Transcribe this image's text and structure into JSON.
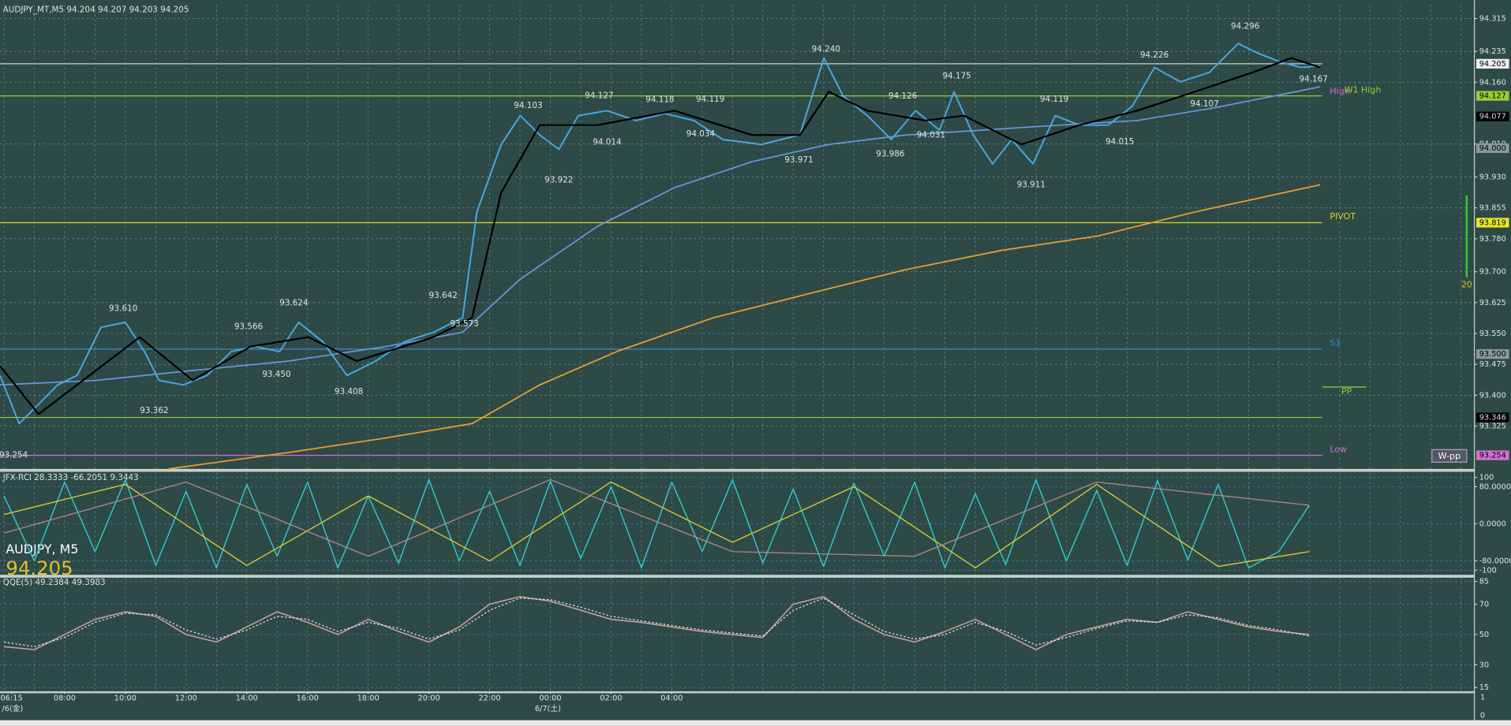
{
  "chart_data": [
    {
      "type": "line",
      "title": "AUDJPY_MT,M5  94.204 94.207 94.203 94.205",
      "xlim": [
        5.87,
        54.44
      ],
      "xticks": [
        {
          "value": 6.25,
          "label": "06:15"
        },
        {
          "value": 8,
          "label": "08:00"
        },
        {
          "value": 10,
          "label": "10:00"
        },
        {
          "value": 12,
          "label": "12:00"
        },
        {
          "value": 14,
          "label": "14:00"
        },
        {
          "value": 16,
          "label": "16:00"
        },
        {
          "value": 18,
          "label": "18:00"
        },
        {
          "value": 20,
          "label": "20:00"
        },
        {
          "value": 22,
          "label": "22:00"
        },
        {
          "value": 24,
          "label": "00:00"
        },
        {
          "value": 26,
          "label": "02:00"
        },
        {
          "value": 28,
          "label": "04:00"
        }
      ],
      "ylim": [
        93.221,
        94.348
      ],
      "yticks": [
        94.315,
        94.235,
        {
          "value": 94.16,
          "label": "94.160"
        },
        {
          "value": 94.01,
          "label": "94.010"
        },
        {
          "value": 93.93,
          "label": "93.930"
        },
        93.855,
        {
          "value": 93.78,
          "label": "93.780"
        },
        {
          "value": 93.7,
          "label": "93.700"
        },
        93.625,
        {
          "value": 93.55,
          "label": "93.550"
        },
        93.475,
        {
          "value": 93.4,
          "label": "93.400"
        },
        93.325
      ],
      "grid": true,
      "xgrid": true,
      "series": [
        {
          "color": "#4aa8e0",
          "width": 1.6,
          "x": [
            5.87,
            6.5,
            7.14,
            7.77,
            8.41,
            9.2,
            10.0,
            10.63,
            11.11,
            11.9,
            12.69,
            13.49,
            14.28,
            15.08,
            15.71,
            16.5,
            17.3,
            18.25,
            19.2,
            20.15,
            21.11,
            21.58,
            22.38,
            23.01,
            23.65,
            24.28,
            24.92,
            25.87,
            26.82,
            27.77,
            28.73,
            29.68,
            30.95,
            32.22,
            33.01,
            33.65,
            34.44,
            35.23,
            36.03,
            36.82,
            37.3,
            37.93,
            38.57,
            39.2,
            39.9,
            40.63,
            41.43,
            42.38,
            43.17,
            43.9,
            44.76,
            45.71,
            46.66,
            47.3,
            48.09,
            48.73,
            49.36
          ],
          "values": [
            93.448,
            93.331,
            93.378,
            93.425,
            93.448,
            93.565,
            93.577,
            93.506,
            93.436,
            93.425,
            93.448,
            93.506,
            93.518,
            93.506,
            93.577,
            93.53,
            93.448,
            93.483,
            93.53,
            93.553,
            93.588,
            93.845,
            94.009,
            94.079,
            94.032,
            93.997,
            94.079,
            94.091,
            94.067,
            94.084,
            94.067,
            94.021,
            94.009,
            94.032,
            94.219,
            94.126,
            94.079,
            94.021,
            94.091,
            94.044,
            94.137,
            94.032,
            93.962,
            94.021,
            93.962,
            94.079,
            94.056,
            94.056,
            94.102,
            94.196,
            94.161,
            94.184,
            94.254,
            94.231,
            94.208,
            94.196,
            94.2
          ]
        },
        {
          "color": "#6a98dc",
          "width": 1.4,
          "x": [
            5.87,
            9.04,
            12.22,
            15.39,
            18.57,
            21.11,
            23.01,
            25.55,
            28.09,
            30.63,
            33.17,
            35.71,
            38.25,
            40.79,
            43.33,
            45.87,
            49.36
          ],
          "values": [
            93.425,
            93.436,
            93.46,
            93.483,
            93.518,
            93.553,
            93.682,
            93.81,
            93.904,
            93.967,
            94.009,
            94.032,
            94.044,
            94.056,
            94.067,
            94.098,
            94.149
          ]
        },
        {
          "color": "#f0a030",
          "width": 1.4,
          "x": [
            11.42,
            15.39,
            18.57,
            21.42,
            23.65,
            26.19,
            29.36,
            32.54,
            35.71,
            38.88,
            42.06,
            45.23,
            49.36
          ],
          "values": [
            93.221,
            93.261,
            93.296,
            93.331,
            93.425,
            93.506,
            93.588,
            93.647,
            93.705,
            93.752,
            93.787,
            93.845,
            93.911
          ]
        },
        {
          "color": "#000000",
          "width": 1.8,
          "x": [
            5.87,
            7.14,
            8.41,
            10.47,
            12.22,
            14.12,
            16.03,
            17.62,
            20.15,
            21.42,
            22.38,
            23.65,
            25.55,
            28.09,
            30.63,
            32.22,
            33.17,
            34.44,
            36.35,
            37.62,
            39.52,
            41.43,
            43.33,
            45.23,
            47.14,
            48.41,
            49.36
          ],
          "values": [
            93.471,
            93.354,
            93.425,
            93.541,
            93.436,
            93.518,
            93.541,
            93.483,
            93.541,
            93.588,
            93.892,
            94.056,
            94.056,
            94.091,
            94.032,
            94.032,
            94.137,
            94.091,
            94.067,
            94.079,
            94.009,
            94.056,
            94.091,
            94.137,
            94.184,
            94.219,
            94.196
          ]
        }
      ],
      "levels": [
        {
          "value": 94.205,
          "color": "#c8d0ce"
        },
        {
          "name": "W1 High",
          "value": 94.127,
          "color": "#9acd32"
        },
        {
          "name": "PIVOT",
          "value": 93.819,
          "color": "#d8d820"
        },
        {
          "name": "S1",
          "value": 93.512,
          "color": "#3a8ad0"
        },
        {
          "value": 93.346,
          "color": "#9acd32"
        },
        {
          "name": "Low",
          "value": 93.254,
          "color": "#d070d0"
        }
      ],
      "texts": [
        "High",
        "PP",
        "W-pp"
      ],
      "annotations": [
        {
          "x": 9.93,
          "value": 93.61
        },
        {
          "x": 10.95,
          "value": 93.362
        },
        {
          "x": 14.06,
          "value": 93.566
        },
        {
          "x": 14.98,
          "value": 93.45
        },
        {
          "x": 15.55,
          "value": 93.624
        },
        {
          "x": 17.36,
          "value": 93.408
        },
        {
          "x": 20.47,
          "value": 93.642
        },
        {
          "x": 21.17,
          "value": 93.573
        },
        {
          "x": 23.27,
          "value": 94.103
        },
        {
          "x": 24.28,
          "value": 93.922
        },
        {
          "x": 25.61,
          "value": 94.127
        },
        {
          "x": 25.87,
          "value": 94.014
        },
        {
          "x": 27.61,
          "value": 94.118
        },
        {
          "x": 28.95,
          "value": 94.034
        },
        {
          "x": 29.27,
          "value": 94.119
        },
        {
          "x": 33.08,
          "value": 94.24
        },
        {
          "x": 32.19,
          "value": 93.971
        },
        {
          "x": 35.61,
          "value": 94.126
        },
        {
          "x": 35.2,
          "value": 93.986
        },
        {
          "x": 36.54,
          "value": 94.031
        },
        {
          "x": 37.39,
          "value": 94.175
        },
        {
          "x": 39.84,
          "value": 93.911
        },
        {
          "x": 40.6,
          "value": 94.119
        },
        {
          "x": 42.76,
          "value": 94.015
        },
        {
          "x": 43.9,
          "value": 94.226
        },
        {
          "x": 45.55,
          "value": 94.107
        },
        {
          "x": 46.89,
          "value": 94.296
        },
        {
          "x": 49.14,
          "value": 94.167
        },
        {
          "x": 6.31,
          "value": 93.254
        }
      ],
      "annotation_labels": [
        "93.610",
        "93.362",
        "93.566",
        "93.450",
        "93.624",
        "93.408",
        "93.642",
        "93.573",
        "94.103",
        "93.922",
        "94.127",
        "94.014",
        "94.118",
        "94.034",
        "94.119",
        "94.240",
        "93.971",
        "94.126",
        "93.986",
        "94.031",
        "94.175",
        "93.911",
        "94.119",
        "94.015",
        "94.226",
        "94.107",
        "94.296",
        "94.167",
        "93.254"
      ],
      "price_labels": [
        {
          "value": 94.205,
          "label": "94.205",
          "color": "#f0f0f0"
        },
        {
          "value": 94.127,
          "label": "94.127",
          "color": "#9acd32"
        },
        {
          "value": 94.077,
          "label": "94.077",
          "color": "#000000"
        },
        {
          "value": 94.0,
          "label": "94.000",
          "color": "#8a9a98"
        },
        {
          "value": 93.819,
          "label": "93.819",
          "color": "#e8e820"
        },
        {
          "value": 93.5,
          "label": "93.500",
          "color": "#8a9a98"
        },
        {
          "value": 93.346,
          "label": "93.346",
          "color": "#000000"
        },
        {
          "value": 93.254,
          "label": "93.254",
          "color": "#d070d0"
        }
      ]
    },
    {
      "type": "line",
      "title": "JFX-RCI 28.3333 -66.2051 9.3443",
      "xlim": [
        5.87,
        54.44
      ],
      "ylim": [
        -110,
        110
      ],
      "yticks": [
        100,
        {
          "value": 80,
          "label": "80.0000"
        },
        {
          "value": 0,
          "label": "0.0000"
        },
        {
          "value": -80,
          "label": "-80.0000"
        },
        -100
      ],
      "grid": true,
      "xgrid": true,
      "x": [
        6,
        7,
        8,
        9,
        10,
        11,
        12,
        13,
        14,
        15,
        16,
        17,
        18,
        19,
        20,
        21,
        22,
        23,
        24,
        25,
        26,
        27,
        28,
        29,
        30,
        31,
        32,
        33,
        34,
        35,
        36,
        37,
        38,
        39,
        40,
        41,
        42,
        43,
        44,
        45,
        46,
        47,
        48,
        49
      ],
      "series": [
        {
          "color": "#30c8c8",
          "width": 1.2,
          "values": [
            60,
            -80,
            90,
            -60,
            95,
            -90,
            70,
            -95,
            85,
            -70,
            90,
            -95,
            60,
            -85,
            95,
            -80,
            70,
            -90,
            92,
            -75,
            80,
            -95,
            90,
            -60,
            95,
            -85,
            75,
            -92,
            88,
            -70,
            90,
            -95,
            65,
            -88,
            95,
            -80,
            72,
            -90,
            93,
            -78,
            85,
            -95,
            -60,
            40
          ]
        },
        {
          "color": "#d8d030",
          "width": 1.1,
          "x": [
            6,
            10,
            14,
            18,
            22,
            26,
            30,
            34,
            38,
            42,
            46,
            49
          ],
          "values": [
            20,
            85,
            -90,
            60,
            -80,
            90,
            -40,
            80,
            -95,
            85,
            -92,
            -60
          ]
        },
        {
          "color": "#b08888",
          "width": 1.1,
          "x": [
            6,
            12,
            18,
            24,
            30,
            36,
            42,
            49
          ],
          "values": [
            -20,
            90,
            -70,
            95,
            -60,
            -70,
            90,
            40
          ]
        }
      ]
    },
    {
      "type": "line",
      "title": "QQE(5) 49.2384 49.3983",
      "xlim": [
        5.87,
        54.44
      ],
      "ylim": [
        12.5,
        87.5
      ],
      "yticks": [
        85,
        70,
        50,
        30,
        15
      ],
      "grid": true,
      "xgrid": true,
      "x": [
        6,
        7,
        8,
        9,
        10,
        11,
        12,
        13,
        14,
        15,
        16,
        17,
        18,
        19,
        20,
        21,
        22,
        23,
        24,
        25,
        26,
        27,
        28,
        29,
        30,
        31,
        32,
        33,
        34,
        35,
        36,
        37,
        38,
        39,
        40,
        41,
        42,
        43,
        44,
        45,
        46,
        47,
        48,
        49
      ],
      "series": [
        {
          "color": "#c8a0a0",
          "width": 1.3,
          "values": [
            42,
            40,
            50,
            60,
            65,
            62,
            50,
            45,
            55,
            65,
            58,
            50,
            60,
            52,
            45,
            55,
            70,
            75,
            72,
            66,
            60,
            58,
            55,
            52,
            50,
            48,
            70,
            75,
            60,
            50,
            45,
            52,
            60,
            50,
            40,
            50,
            55,
            60,
            58,
            65,
            60,
            55,
            52,
            50
          ]
        },
        {
          "color": "#e8e8e8",
          "width": 1,
          "dash": true,
          "values": [
            45,
            42,
            48,
            58,
            64,
            63,
            53,
            47,
            53,
            62,
            60,
            52,
            58,
            54,
            47,
            53,
            66,
            74,
            73,
            68,
            62,
            59,
            56,
            53,
            51,
            49,
            66,
            74,
            63,
            52,
            47,
            50,
            58,
            52,
            43,
            48,
            54,
            59,
            58,
            63,
            61,
            56,
            53,
            49
          ]
        }
      ]
    }
  ],
  "overlay_symbol": "AUDJPY, M5",
  "overlay_price": "94.205",
  "date_labels": [
    "/6(金)",
    "6/7(土)"
  ],
  "side_label": "20",
  "volume_ticks": [
    1,
    0
  ]
}
